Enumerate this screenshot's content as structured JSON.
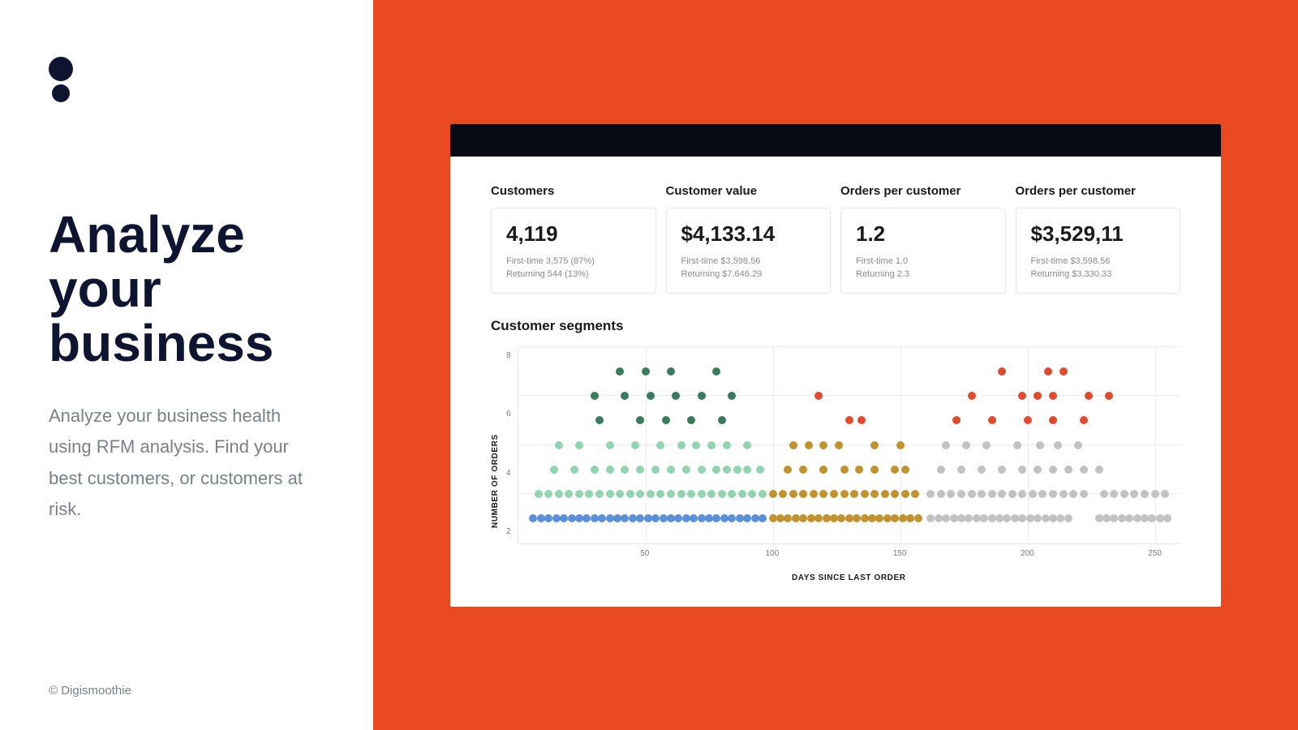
{
  "layout": {
    "left_bg": "#ffffff",
    "right_bg": "#ea4a1f",
    "dashboard_bg": "#ffffff",
    "dashboard_header_bg": "#080b16",
    "logo_color": "#0f1530",
    "heading_color": "#0f1530",
    "body_color": "#7b7f8a",
    "card_border": "#e6e6e6"
  },
  "left": {
    "heading": "Analyze your business",
    "body": "Analyze your business health using RFM analysis. Find your best customers, or customers at risk.",
    "copyright": "© Digismoothie"
  },
  "metrics": [
    {
      "label": "Customers",
      "value": "4,119",
      "sub1": "First-time 3,575 (87%)",
      "sub2": "Returning 544 (13%)"
    },
    {
      "label": "Customer value",
      "value": "$4,133.14",
      "sub1": "First-time $3,598.56",
      "sub2": "Returning $7,646.29"
    },
    {
      "label": "Orders per customer",
      "value": "1.2",
      "sub1": "First-time 1.0",
      "sub2": "Returning 2.3"
    },
    {
      "label": "Orders per customer",
      "value": "$3,529,11",
      "sub1": "First-time $3,598.56",
      "sub2": "Returning $3,330.33"
    }
  ],
  "chart": {
    "title": "Customer segments",
    "type": "scatter",
    "x_label": "DAYS SINCE LAST ORDER",
    "y_label": "NUMBER OF ORDERS",
    "xlim": [
      0,
      260
    ],
    "ylim": [
      0,
      8
    ],
    "x_ticks": [
      50,
      100,
      150,
      200,
      250
    ],
    "y_ticks": [
      2,
      4,
      6,
      8
    ],
    "grid_color": "#ececec",
    "dot_radius": 5,
    "colors": {
      "dark_green": "#3a7a5e",
      "light_green": "#92d4b0",
      "blue": "#5b8fd8",
      "ochre": "#c0932f",
      "red": "#e04b2f",
      "grey": "#c2c2c2"
    },
    "series": [
      {
        "color": "dark_green",
        "points": [
          [
            40,
            7
          ],
          [
            50,
            7
          ],
          [
            60,
            7
          ],
          [
            78,
            7
          ],
          [
            30,
            6
          ],
          [
            42,
            6
          ],
          [
            52,
            6
          ],
          [
            62,
            6
          ],
          [
            72,
            6
          ],
          [
            84,
            6
          ],
          [
            32,
            5
          ],
          [
            48,
            5
          ],
          [
            58,
            5
          ],
          [
            68,
            5
          ],
          [
            80,
            5
          ]
        ]
      },
      {
        "color": "light_green",
        "points": [
          [
            16,
            4
          ],
          [
            24,
            4
          ],
          [
            36,
            4
          ],
          [
            46,
            4
          ],
          [
            56,
            4
          ],
          [
            64,
            4
          ],
          [
            70,
            4
          ],
          [
            76,
            4
          ],
          [
            82,
            4
          ],
          [
            90,
            4
          ],
          [
            14,
            3
          ],
          [
            22,
            3
          ],
          [
            30,
            3
          ],
          [
            36,
            3
          ],
          [
            42,
            3
          ],
          [
            48,
            3
          ],
          [
            54,
            3
          ],
          [
            60,
            3
          ],
          [
            66,
            3
          ],
          [
            72,
            3
          ],
          [
            78,
            3
          ],
          [
            82,
            3
          ],
          [
            86,
            3
          ],
          [
            90,
            3
          ],
          [
            95,
            3
          ],
          [
            8,
            2
          ],
          [
            12,
            2
          ],
          [
            16,
            2
          ],
          [
            20,
            2
          ],
          [
            24,
            2
          ],
          [
            28,
            2
          ],
          [
            32,
            2
          ],
          [
            36,
            2
          ],
          [
            40,
            2
          ],
          [
            44,
            2
          ],
          [
            48,
            2
          ],
          [
            52,
            2
          ],
          [
            56,
            2
          ],
          [
            60,
            2
          ],
          [
            64,
            2
          ],
          [
            68,
            2
          ],
          [
            72,
            2
          ],
          [
            76,
            2
          ],
          [
            80,
            2
          ],
          [
            84,
            2
          ],
          [
            88,
            2
          ],
          [
            92,
            2
          ],
          [
            96,
            2
          ]
        ]
      },
      {
        "color": "blue",
        "points": [
          [
            6,
            1
          ],
          [
            9,
            1
          ],
          [
            12,
            1
          ],
          [
            15,
            1
          ],
          [
            18,
            1
          ],
          [
            21,
            1
          ],
          [
            24,
            1
          ],
          [
            27,
            1
          ],
          [
            30,
            1
          ],
          [
            33,
            1
          ],
          [
            36,
            1
          ],
          [
            39,
            1
          ],
          [
            42,
            1
          ],
          [
            45,
            1
          ],
          [
            48,
            1
          ],
          [
            51,
            1
          ],
          [
            54,
            1
          ],
          [
            57,
            1
          ],
          [
            60,
            1
          ],
          [
            63,
            1
          ],
          [
            66,
            1
          ],
          [
            69,
            1
          ],
          [
            72,
            1
          ],
          [
            75,
            1
          ],
          [
            78,
            1
          ],
          [
            81,
            1
          ],
          [
            84,
            1
          ],
          [
            87,
            1
          ],
          [
            90,
            1
          ],
          [
            93,
            1
          ],
          [
            96,
            1
          ]
        ]
      },
      {
        "color": "red",
        "points": [
          [
            118,
            6
          ],
          [
            130,
            5
          ],
          [
            135,
            5
          ]
        ]
      },
      {
        "color": "ochre",
        "points": [
          [
            108,
            4
          ],
          [
            114,
            4
          ],
          [
            120,
            4
          ],
          [
            126,
            4
          ],
          [
            140,
            4
          ],
          [
            150,
            4
          ],
          [
            106,
            3
          ],
          [
            112,
            3
          ],
          [
            120,
            3
          ],
          [
            128,
            3
          ],
          [
            134,
            3
          ],
          [
            140,
            3
          ],
          [
            148,
            3
          ],
          [
            152,
            3
          ],
          [
            100,
            2
          ],
          [
            104,
            2
          ],
          [
            108,
            2
          ],
          [
            112,
            2
          ],
          [
            116,
            2
          ],
          [
            120,
            2
          ],
          [
            124,
            2
          ],
          [
            128,
            2
          ],
          [
            132,
            2
          ],
          [
            136,
            2
          ],
          [
            140,
            2
          ],
          [
            144,
            2
          ],
          [
            148,
            2
          ],
          [
            152,
            2
          ],
          [
            156,
            2
          ],
          [
            100,
            1
          ],
          [
            103,
            1
          ],
          [
            106,
            1
          ],
          [
            109,
            1
          ],
          [
            112,
            1
          ],
          [
            115,
            1
          ],
          [
            118,
            1
          ],
          [
            121,
            1
          ],
          [
            124,
            1
          ],
          [
            127,
            1
          ],
          [
            130,
            1
          ],
          [
            133,
            1
          ],
          [
            136,
            1
          ],
          [
            139,
            1
          ],
          [
            142,
            1
          ],
          [
            145,
            1
          ],
          [
            148,
            1
          ],
          [
            151,
            1
          ],
          [
            154,
            1
          ],
          [
            157,
            1
          ]
        ]
      },
      {
        "color": "red",
        "points": [
          [
            190,
            7
          ],
          [
            208,
            7
          ],
          [
            214,
            7
          ],
          [
            178,
            6
          ],
          [
            198,
            6
          ],
          [
            204,
            6
          ],
          [
            210,
            6
          ],
          [
            224,
            6
          ],
          [
            232,
            6
          ],
          [
            172,
            5
          ],
          [
            186,
            5
          ],
          [
            200,
            5
          ],
          [
            210,
            5
          ],
          [
            222,
            5
          ]
        ]
      },
      {
        "color": "grey",
        "points": [
          [
            168,
            4
          ],
          [
            176,
            4
          ],
          [
            184,
            4
          ],
          [
            196,
            4
          ],
          [
            205,
            4
          ],
          [
            212,
            4
          ],
          [
            220,
            4
          ],
          [
            166,
            3
          ],
          [
            174,
            3
          ],
          [
            182,
            3
          ],
          [
            190,
            3
          ],
          [
            198,
            3
          ],
          [
            204,
            3
          ],
          [
            210,
            3
          ],
          [
            216,
            3
          ],
          [
            222,
            3
          ],
          [
            228,
            3
          ],
          [
            162,
            2
          ],
          [
            166,
            2
          ],
          [
            170,
            2
          ],
          [
            174,
            2
          ],
          [
            178,
            2
          ],
          [
            182,
            2
          ],
          [
            186,
            2
          ],
          [
            190,
            2
          ],
          [
            194,
            2
          ],
          [
            198,
            2
          ],
          [
            202,
            2
          ],
          [
            206,
            2
          ],
          [
            210,
            2
          ],
          [
            214,
            2
          ],
          [
            218,
            2
          ],
          [
            222,
            2
          ],
          [
            230,
            2
          ],
          [
            234,
            2
          ],
          [
            238,
            2
          ],
          [
            242,
            2
          ],
          [
            246,
            2
          ],
          [
            250,
            2
          ],
          [
            254,
            2
          ],
          [
            162,
            1
          ],
          [
            165,
            1
          ],
          [
            168,
            1
          ],
          [
            171,
            1
          ],
          [
            174,
            1
          ],
          [
            177,
            1
          ],
          [
            180,
            1
          ],
          [
            183,
            1
          ],
          [
            186,
            1
          ],
          [
            189,
            1
          ],
          [
            192,
            1
          ],
          [
            195,
            1
          ],
          [
            198,
            1
          ],
          [
            201,
            1
          ],
          [
            204,
            1
          ],
          [
            207,
            1
          ],
          [
            210,
            1
          ],
          [
            213,
            1
          ],
          [
            216,
            1
          ],
          [
            228,
            1
          ],
          [
            231,
            1
          ],
          [
            234,
            1
          ],
          [
            237,
            1
          ],
          [
            240,
            1
          ],
          [
            243,
            1
          ],
          [
            246,
            1
          ],
          [
            249,
            1
          ],
          [
            252,
            1
          ],
          [
            255,
            1
          ]
        ]
      }
    ]
  }
}
